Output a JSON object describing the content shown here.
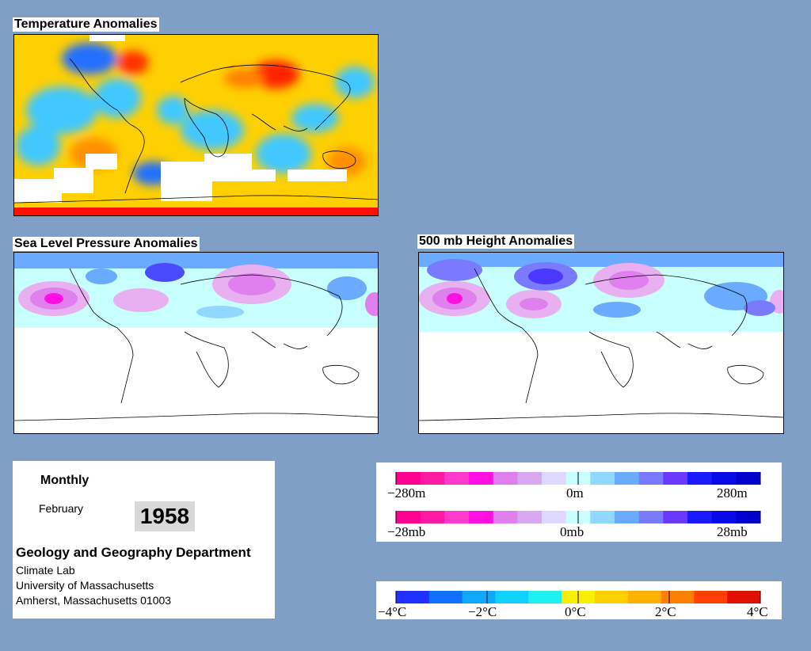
{
  "maps": {
    "temperature": {
      "title": "Temperature Anomalies"
    },
    "slp": {
      "title": "Sea Level Pressure Anomalies"
    },
    "height500": {
      "title": "500 mb Height Anomalies"
    }
  },
  "info": {
    "period": "Monthly",
    "month": "February",
    "year": "1958",
    "department": "Geology and Geography Department",
    "lines": [
      "Climate Lab",
      "University of Massachusetts",
      "Amherst, Massachusetts 01003"
    ]
  },
  "legend_height": {
    "min_label": "−280m",
    "mid_label": "0m",
    "max_label": "280m",
    "colors": [
      "#ff0090",
      "#ff1aa5",
      "#ff3acc",
      "#ff10e0",
      "#e080ee",
      "#d8a8f0",
      "#ddd8ff",
      "#c8ffff",
      "#90d8ff",
      "#6aaaff",
      "#7a7aff",
      "#6a38ff",
      "#1a1aff",
      "#0a0ae8",
      "#0000cc"
    ]
  },
  "legend_pressure": {
    "min_label": "−28mb",
    "mid_label": "0mb",
    "max_label": "28mb",
    "colors": [
      "#ff0090",
      "#ff1aa5",
      "#ff3acc",
      "#ff10e0",
      "#e080ee",
      "#d8a8f0",
      "#ddd8ff",
      "#c8ffff",
      "#90d8ff",
      "#6aaaff",
      "#7a7aff",
      "#6a38ff",
      "#1a1aff",
      "#0a0ae8",
      "#0000cc"
    ]
  },
  "legend_temperature": {
    "labels": [
      "−4°C",
      "−2°C",
      "0°C",
      "2°C",
      "4°C"
    ],
    "colors": [
      "#2030ff",
      "#1070ff",
      "#10a8ff",
      "#10d0ff",
      "#20f0f0",
      "#f8f000",
      "#ffd000",
      "#ffb000",
      "#ff8000",
      "#ff4000",
      "#e01000"
    ]
  }
}
